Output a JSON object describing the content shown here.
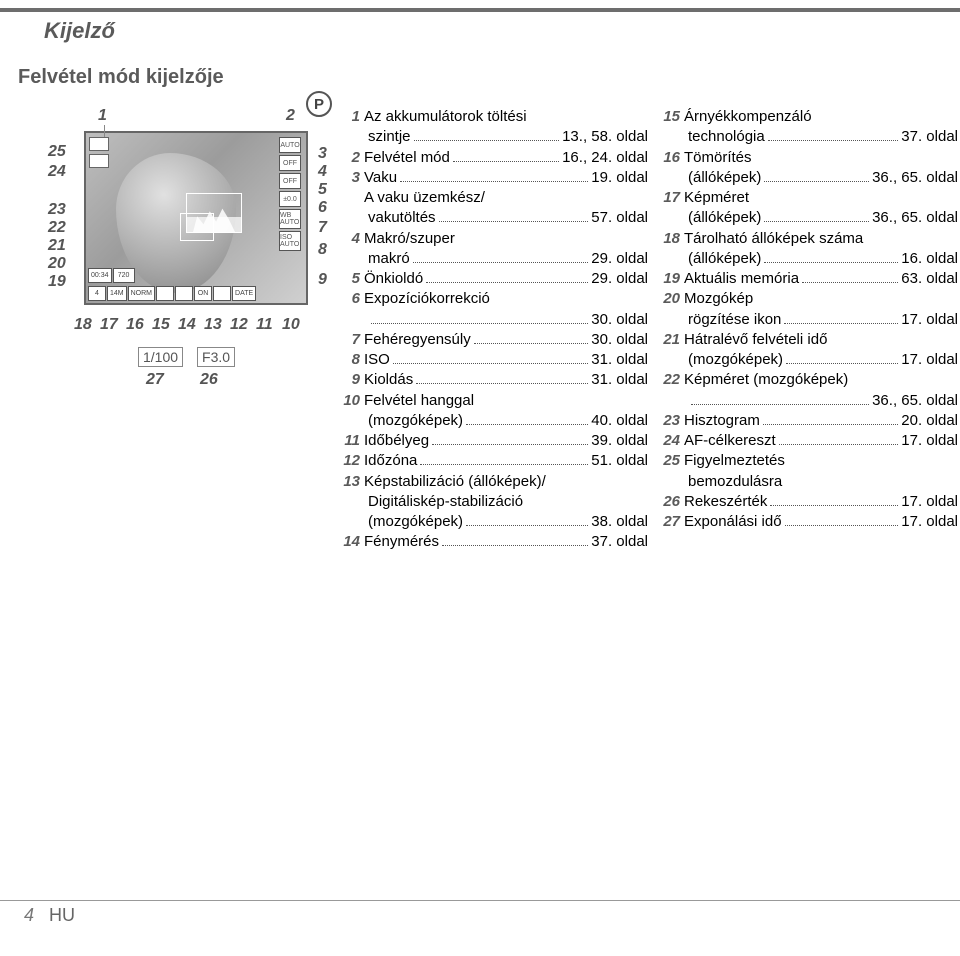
{
  "page": {
    "title": "Kijelző",
    "subtitle": "Felvétel mód kijelzője",
    "footer_page": "4",
    "footer_lang": "HU"
  },
  "diagram": {
    "p_label": "P",
    "shutter": "1/100",
    "aperture": "F3.0",
    "ref27": "27",
    "ref26": "26",
    "right_icons": [
      "AUTO",
      "OFF",
      "OFF",
      "±0.0",
      "WB AUTO",
      "ISO AUTO"
    ],
    "bottom_icons": [
      "4",
      "14M",
      "NORM",
      "",
      "",
      "ON",
      "",
      "DATE"
    ],
    "time_icons": [
      "00:34",
      "720"
    ],
    "left_top_icons": [
      "",
      ""
    ],
    "callouts_top": {
      "c1": "1",
      "c2": "2"
    },
    "callouts_left": {
      "c25": "25",
      "c24": "24",
      "c23": "23",
      "c22": "22",
      "c21": "21",
      "c20": "20",
      "c19": "19"
    },
    "callouts_right": {
      "c3": "3",
      "c4": "4",
      "c5": "5",
      "c6": "6",
      "c7": "7",
      "c8": "8",
      "c9": "9"
    },
    "callouts_bottom": {
      "c18": "18",
      "c17": "17",
      "c16": "16",
      "c15": "15",
      "c14": "14",
      "c13": "13",
      "c12": "12",
      "c11": "11",
      "c10": "10"
    }
  },
  "legend1": [
    {
      "n": "1",
      "t": "Az akkumulátorok töltési",
      "cont": "szintje",
      "p": "13., 58. oldal"
    },
    {
      "n": "2",
      "t": "Felvétel mód",
      "p": "16., 24. oldal"
    },
    {
      "n": "3",
      "t": "Vaku",
      "p": "19. oldal"
    },
    {
      "n": "",
      "t": "A vaku üzemkész/",
      "cont": "vakutöltés",
      "p": "57. oldal"
    },
    {
      "n": "4",
      "t": "Makró/szuper",
      "cont": "makró",
      "p": "29. oldal"
    },
    {
      "n": "5",
      "t": "Önkioldó",
      "p": "29. oldal"
    },
    {
      "n": "6",
      "t": "Expozíciókorrekció",
      "cont": "",
      "p": "30. oldal"
    },
    {
      "n": "7",
      "t": "Fehéregyensúly",
      "p": "30. oldal"
    },
    {
      "n": "8",
      "t": "ISO",
      "p": "31. oldal"
    },
    {
      "n": "9",
      "t": "Kioldás",
      "p": "31. oldal"
    },
    {
      "n": "10",
      "t": "Felvétel hanggal",
      "cont": "(mozgóképek)",
      "p": "40. oldal"
    },
    {
      "n": "11",
      "t": "Időbélyeg",
      "p": "39. oldal"
    },
    {
      "n": "12",
      "t": "Időzóna",
      "p": "51. oldal"
    },
    {
      "n": "13",
      "t": "Képstabilizáció (állóképek)/",
      "cont2": "Digitáliskép-stabilizáció",
      "cont": "(mozgóképek)",
      "p": "38. oldal"
    },
    {
      "n": "14",
      "t": "Fénymérés",
      "p": "37. oldal"
    }
  ],
  "legend2": [
    {
      "n": "15",
      "t": "Árnyékkompenzáló",
      "cont": "technológia",
      "p": "37. oldal"
    },
    {
      "n": "16",
      "t": "Tömörítés",
      "cont": "(állóképek)",
      "p": "36., 65. oldal"
    },
    {
      "n": "17",
      "t": "Képméret",
      "cont": "(állóképek)",
      "p": "36., 65. oldal"
    },
    {
      "n": "18",
      "t": "Tárolható állóképek száma",
      "cont": "(állóképek)",
      "p": "16. oldal"
    },
    {
      "n": "19",
      "t": "Aktuális memória",
      "p": "63. oldal"
    },
    {
      "n": "20",
      "t": "Mozgókép",
      "cont": "rögzítése ikon",
      "p": "17. oldal"
    },
    {
      "n": "21",
      "t": "Hátralévő felvételi idő",
      "cont": "(mozgóképek)",
      "p": "17. oldal"
    },
    {
      "n": "22",
      "t": "Képméret (mozgóképek)",
      "cont": "",
      "p": "36., 65. oldal"
    },
    {
      "n": "23",
      "t": "Hisztogram",
      "p": "20. oldal"
    },
    {
      "n": "24",
      "t": "AF-célkereszt",
      "p": "17. oldal"
    },
    {
      "n": "25",
      "t": "Figyelmeztetés",
      "cont": "bemozdulásra",
      "nopage": true
    },
    {
      "n": "26",
      "t": "Rekeszérték",
      "p": "17. oldal"
    },
    {
      "n": "27",
      "t": "Exponálási idő",
      "p": "17. oldal"
    }
  ]
}
